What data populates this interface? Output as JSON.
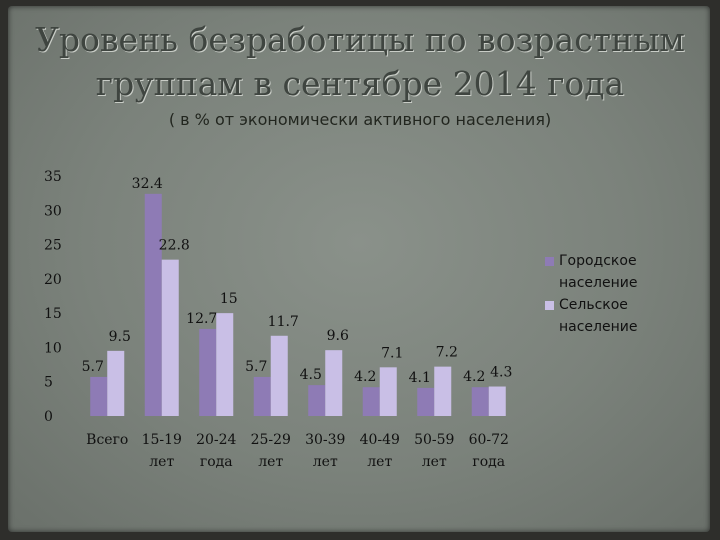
{
  "title": "Уровень безработицы по возрастным группам в сентябре 2014 года",
  "subtitle": "( в % от экономически активного населения)",
  "colors": {
    "series1": "#8e7bb5",
    "series2": "#c9bfe6"
  },
  "chart_data": {
    "type": "bar",
    "title": "Уровень безработицы по возрастным группам в сентябре 2014 года",
    "subtitle": "( в % от экономически активного населения)",
    "categories": [
      [
        "Всего"
      ],
      [
        "15-19",
        "лет"
      ],
      [
        "20-24",
        "года"
      ],
      [
        "25-29",
        "лет"
      ],
      [
        "30-39",
        "лет"
      ],
      [
        "40-49",
        "лет"
      ],
      [
        "50-59",
        "лет"
      ],
      [
        "60-72",
        "года"
      ]
    ],
    "series": [
      {
        "name": "Городское население",
        "values": [
          5.7,
          32.4,
          12.7,
          5.7,
          4.5,
          4.2,
          4.1,
          4.2
        ]
      },
      {
        "name": "Сельское население",
        "values": [
          9.5,
          22.8,
          15,
          11.7,
          9.6,
          7.1,
          7.2,
          4.3
        ]
      }
    ],
    "ylim": [
      0,
      35
    ],
    "yticks": [
      0,
      5,
      10,
      15,
      20,
      25,
      30,
      35
    ],
    "legend_position": "right",
    "grid": false
  }
}
